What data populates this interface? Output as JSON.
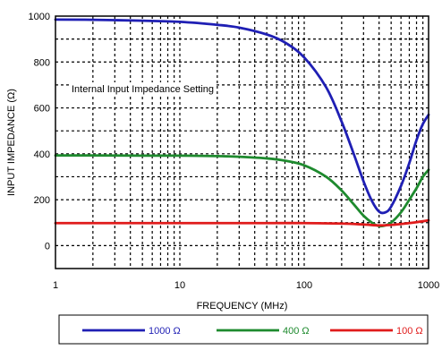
{
  "chart_data": {
    "type": "line",
    "title": "",
    "xlabel": "FREQUENCY (MHz)",
    "ylabel": "INPUT IMPEDANCE (Ω)",
    "xscale": "log",
    "xlim": [
      1,
      1000
    ],
    "ylim": [
      -100,
      1000
    ],
    "grid": true,
    "grid_style": "dashed",
    "x_ticks": [
      1,
      10,
      100,
      1000
    ],
    "x_tick_labels": [
      "1",
      "10",
      "100",
      "1000"
    ],
    "y_ticks": [
      0,
      200,
      400,
      600,
      800,
      1000
    ],
    "y_tick_labels": [
      "0",
      "200",
      "400",
      "600",
      "800",
      "1000"
    ],
    "annotation": "Internal Input Impedance Setting",
    "legend_position": "bottom",
    "series": [
      {
        "name": "1000 Ω",
        "color": "#1f1fb4",
        "x": [
          1,
          2,
          5,
          10,
          20,
          30,
          50,
          70,
          100,
          150,
          200,
          250,
          300,
          350,
          400,
          450,
          500,
          600,
          700,
          800,
          900,
          1000
        ],
        "y": [
          985,
          984,
          980,
          975,
          962,
          950,
          920,
          885,
          820,
          690,
          540,
          400,
          280,
          195,
          148,
          145,
          170,
          260,
          360,
          460,
          530,
          570
        ]
      },
      {
        "name": "400 Ω",
        "color": "#1e8a2e",
        "x": [
          1,
          2,
          5,
          10,
          20,
          30,
          50,
          70,
          100,
          150,
          200,
          250,
          300,
          350,
          400,
          450,
          500,
          600,
          700,
          800,
          900,
          1000
        ],
        "y": [
          393,
          393,
          392,
          392,
          390,
          387,
          380,
          370,
          350,
          300,
          240,
          180,
          130,
          100,
          85,
          88,
          100,
          145,
          200,
          250,
          300,
          330
        ]
      },
      {
        "name": "100 Ω",
        "color": "#e01b1b",
        "x": [
          1,
          2,
          5,
          10,
          20,
          50,
          100,
          200,
          300,
          400,
          500,
          600,
          700,
          800,
          900,
          1000
        ],
        "y": [
          98,
          98,
          98,
          98,
          98,
          98,
          98,
          96,
          92,
          88,
          90,
          94,
          98,
          102,
          106,
          110
        ]
      }
    ]
  }
}
